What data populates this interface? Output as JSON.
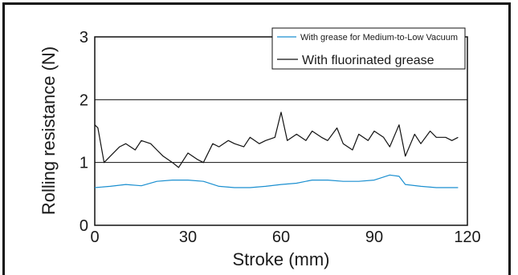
{
  "chart_data": {
    "type": "line",
    "xlabel": "Stroke (mm)",
    "ylabel": "Rolling resistance (N)",
    "xlim": [
      0,
      120
    ],
    "ylim": [
      0,
      3
    ],
    "x_ticks": [
      "0",
      "30",
      "60",
      "90",
      "120"
    ],
    "y_ticks": [
      "0",
      "1",
      "2",
      "3"
    ],
    "grid_y": [
      1,
      2
    ],
    "legend_position": "top-right",
    "series": [
      {
        "name": "With grease for Medium-to-Low Vacuum",
        "color": "#1a8fd0",
        "x": [
          0,
          5,
          10,
          15,
          20,
          25,
          30,
          35,
          40,
          45,
          50,
          55,
          60,
          65,
          70,
          75,
          80,
          85,
          90,
          95,
          98,
          100,
          105,
          110,
          117
        ],
        "values": [
          0.6,
          0.62,
          0.65,
          0.63,
          0.7,
          0.72,
          0.72,
          0.7,
          0.62,
          0.6,
          0.6,
          0.62,
          0.65,
          0.67,
          0.72,
          0.72,
          0.7,
          0.7,
          0.72,
          0.8,
          0.78,
          0.65,
          0.62,
          0.6,
          0.6
        ]
      },
      {
        "name": "With fluorinated grease",
        "color": "#111111",
        "x": [
          0,
          1,
          3,
          5,
          8,
          10,
          13,
          15,
          18,
          20,
          22,
          25,
          27,
          30,
          33,
          35,
          38,
          40,
          43,
          45,
          48,
          50,
          53,
          55,
          58,
          60,
          62,
          65,
          68,
          70,
          73,
          75,
          78,
          80,
          83,
          85,
          88,
          90,
          93,
          95,
          98,
          100,
          103,
          105,
          108,
          110,
          113,
          115,
          117
        ],
        "values": [
          1.6,
          1.55,
          1.0,
          1.1,
          1.25,
          1.3,
          1.2,
          1.35,
          1.3,
          1.2,
          1.1,
          1.0,
          0.92,
          1.15,
          1.05,
          1.0,
          1.3,
          1.25,
          1.35,
          1.3,
          1.25,
          1.4,
          1.3,
          1.35,
          1.4,
          1.8,
          1.35,
          1.45,
          1.35,
          1.5,
          1.4,
          1.35,
          1.55,
          1.3,
          1.2,
          1.45,
          1.35,
          1.5,
          1.4,
          1.25,
          1.6,
          1.1,
          1.45,
          1.3,
          1.5,
          1.4,
          1.4,
          1.35,
          1.4
        ]
      }
    ]
  }
}
